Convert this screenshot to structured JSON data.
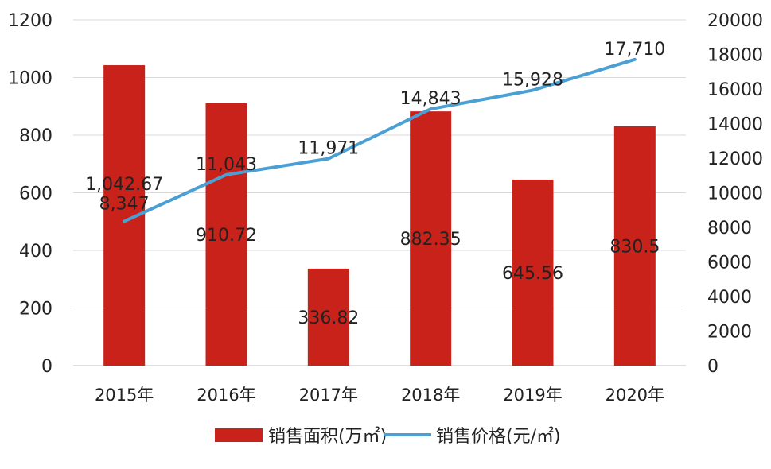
{
  "chart_data": {
    "type": "bar",
    "categories": [
      "2015年",
      "2016年",
      "2017年",
      "2018年",
      "2019年",
      "2020年"
    ],
    "series": [
      {
        "name": "销售面积(万㎡)",
        "type": "bar",
        "axis": "left",
        "values": [
          1042.67,
          910.72,
          336.82,
          882.35,
          645.56,
          830.5
        ],
        "labels": [
          "1,042.67",
          "910.72",
          "336.82",
          "882.35",
          "645.56",
          "830.5"
        ],
        "color": "#c8221b"
      },
      {
        "name": "销售价格(元/㎡)",
        "type": "line",
        "axis": "right",
        "values": [
          8347,
          11043,
          11971,
          14843,
          15928,
          17710
        ],
        "labels": [
          "8,347",
          "11,043",
          "11,971",
          "14,843",
          "15,928",
          "17,710"
        ],
        "color": "#4a9fd4"
      }
    ],
    "y_left": {
      "min": 0,
      "max": 1200,
      "ticks": [
        "0",
        "200",
        "400",
        "600",
        "800",
        "1000",
        "1200"
      ]
    },
    "y_right": {
      "min": 0,
      "max": 20000,
      "ticks": [
        "0",
        "2000",
        "4000",
        "6000",
        "8000",
        "10000",
        "12000",
        "14000",
        "16000",
        "18000",
        "20000"
      ]
    },
    "grid": true,
    "legend_position": "bottom",
    "title": "",
    "xlabel": "",
    "ylabel": ""
  }
}
